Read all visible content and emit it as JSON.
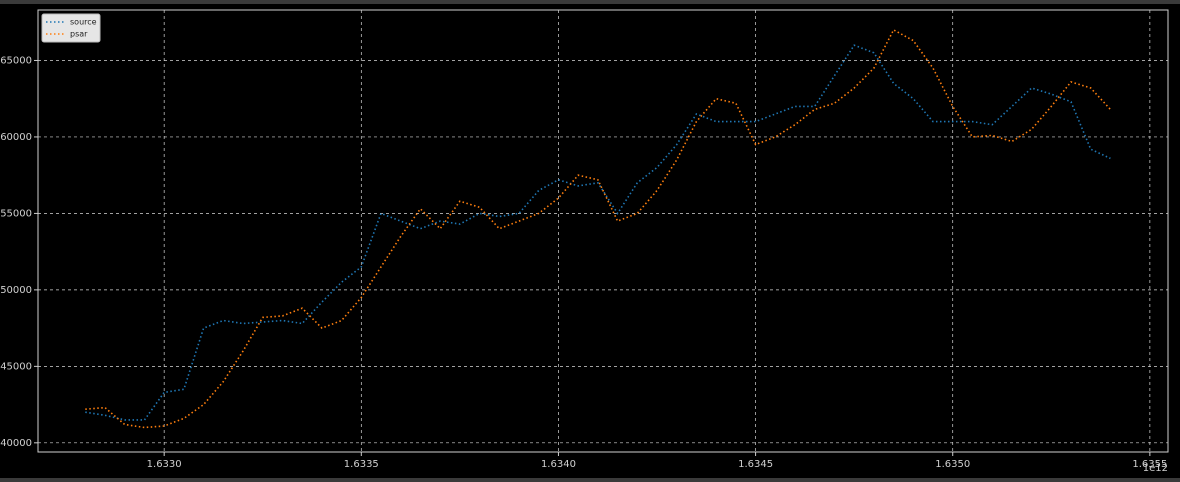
{
  "chart_data": {
    "type": "line",
    "x_offset_label": "1e12",
    "x": [
      1.6328,
      1.63285,
      1.6329,
      1.63295,
      1.633,
      1.63305,
      1.6331,
      1.63315,
      1.6332,
      1.63325,
      1.6333,
      1.63335,
      1.6334,
      1.63345,
      1.6335,
      1.63355,
      1.6336,
      1.63365,
      1.6337,
      1.63375,
      1.6338,
      1.63385,
      1.6339,
      1.63395,
      1.634,
      1.63405,
      1.6341,
      1.63415,
      1.6342,
      1.63425,
      1.6343,
      1.63435,
      1.6344,
      1.63445,
      1.6345,
      1.63455,
      1.6346,
      1.63465,
      1.6347,
      1.63475,
      1.6348,
      1.63485,
      1.6349,
      1.63495,
      1.635,
      1.63505,
      1.6351,
      1.63515,
      1.6352,
      1.63525,
      1.6353,
      1.63535,
      1.6354
    ],
    "series": [
      {
        "name": "source",
        "color": "#1f77b4",
        "values": [
          42000,
          41800,
          41500,
          41500,
          43300,
          43500,
          47500,
          48000,
          47800,
          47900,
          48000,
          47800,
          49200,
          50500,
          51500,
          55000,
          54500,
          54000,
          54500,
          54300,
          55000,
          54800,
          55000,
          56500,
          57200,
          56800,
          57000,
          55000,
          57000,
          58000,
          59500,
          61500,
          61000,
          61000,
          61000,
          61500,
          62000,
          62000,
          64000,
          66000,
          65500,
          63500,
          62500,
          61000,
          61000,
          61000,
          60800,
          62000,
          63200,
          62800,
          62300,
          59200,
          58600
        ]
      },
      {
        "name": "psar",
        "color": "#ff7f0e",
        "values": [
          42200,
          42300,
          41200,
          41000,
          41100,
          41600,
          42500,
          44000,
          46000,
          48200,
          48300,
          48800,
          47500,
          48000,
          49500,
          51500,
          53500,
          55300,
          54000,
          55800,
          55400,
          54000,
          54500,
          55000,
          56000,
          57500,
          57200,
          54500,
          55000,
          56500,
          58500,
          61000,
          62500,
          62200,
          59500,
          60000,
          60800,
          61800,
          62200,
          63200,
          64500,
          67000,
          66300,
          64500,
          62000,
          60000,
          60100,
          59700,
          60500,
          62000,
          63600,
          63200,
          61800
        ]
      }
    ],
    "xlim": [
      1.63268,
      1.635546
    ],
    "xticks": [
      {
        "value": 1.633,
        "label": "1.6330"
      },
      {
        "value": 1.6335,
        "label": "1.6335"
      },
      {
        "value": 1.634,
        "label": "1.6340"
      },
      {
        "value": 1.6345,
        "label": "1.6345"
      },
      {
        "value": 1.635,
        "label": "1.6350"
      },
      {
        "value": 1.6355,
        "label": "1.6355"
      }
    ],
    "ylim": [
      39400,
      68300
    ],
    "yticks": [
      40000,
      45000,
      50000,
      55000,
      60000,
      65000
    ],
    "grid": true,
    "legend": "upper-left",
    "line_style": "dotted"
  }
}
